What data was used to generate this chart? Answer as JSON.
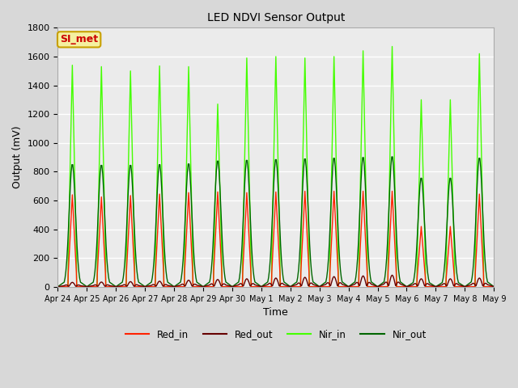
{
  "title": "LED NDVI Sensor Output",
  "xlabel": "Time",
  "ylabel": "Output (mV)",
  "ylim": [
    0,
    1800
  ],
  "background_color": "#d8d8d8",
  "plot_bg_color": "#ebebeb",
  "grid_color": "#ffffff",
  "annotation_text": "SI_met",
  "annotation_bg": "#f5f0a0",
  "annotation_border": "#c8a000",
  "annotation_fg": "#cc0000",
  "series": {
    "Red_in": {
      "color": "#ff2200",
      "lw": 1.0,
      "peaks": [
        640,
        625,
        635,
        645,
        655,
        660,
        655,
        660,
        665,
        665,
        665,
        665,
        420,
        420,
        645
      ]
    },
    "Red_out": {
      "color": "#660000",
      "lw": 1.0,
      "peaks": [
        30,
        32,
        35,
        38,
        45,
        50,
        55,
        60,
        65,
        70,
        75,
        80,
        55,
        55,
        60
      ]
    },
    "Nir_in": {
      "color": "#44ff00",
      "lw": 1.0,
      "peaks": [
        1540,
        1530,
        1500,
        1535,
        1530,
        1270,
        1590,
        1600,
        1590,
        1600,
        1640,
        1670,
        1300,
        1300,
        1620
      ]
    },
    "Nir_out": {
      "color": "#006600",
      "lw": 1.0,
      "peaks": [
        855,
        850,
        850,
        855,
        860,
        880,
        885,
        890,
        895,
        900,
        905,
        910,
        760,
        760,
        900
      ]
    }
  },
  "tick_labels": [
    "Apr 24",
    "Apr 25",
    "Apr 26",
    "Apr 27",
    "Apr 28",
    "Apr 29",
    "Apr 30",
    "May 1",
    "May 2",
    "May 3",
    "May 4",
    "May 5",
    "May 6",
    "May 7",
    "May 8",
    "May 9"
  ]
}
